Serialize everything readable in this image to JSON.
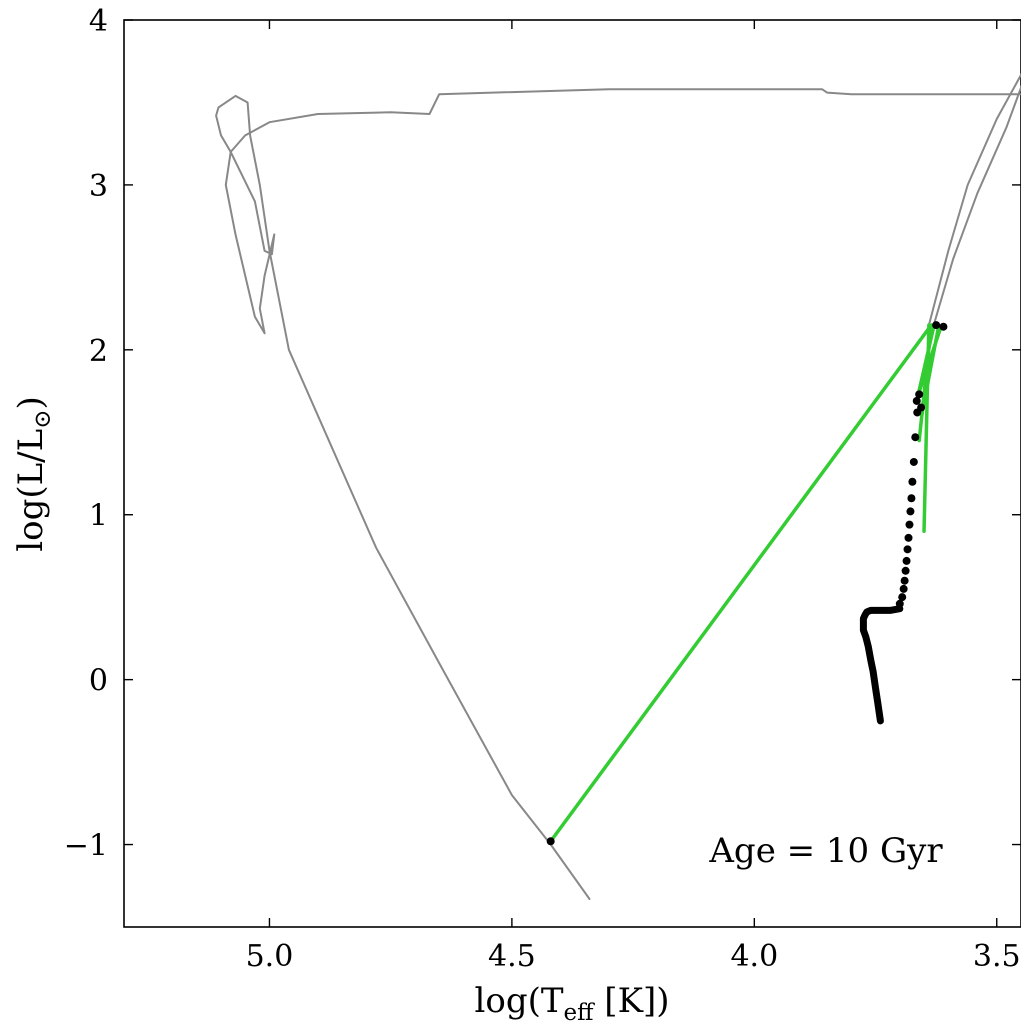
{
  "chart_data": {
    "type": "scatter",
    "title": "",
    "xlabel_base": "log(T",
    "xlabel_sub": "eff",
    "xlabel_tail": " [K])",
    "ylabel_base": "log(L/L",
    "ylabel_sub": "⊙",
    "ylabel_tail": ")",
    "xlim": [
      5.3,
      3.45
    ],
    "ylim": [
      -1.5,
      4.0
    ],
    "xticks": [
      5.0,
      4.5,
      4.0,
      3.5
    ],
    "xtick_labels": [
      "5.0",
      "4.5",
      "4.0",
      "3.5"
    ],
    "yticks": [
      4,
      3,
      2,
      1,
      0,
      -1
    ],
    "ytick_labels": [
      "4",
      "3",
      "2",
      "1",
      "0",
      "−1"
    ],
    "annotation": "Age = 10 Gyr",
    "colors": {
      "track": "#888888",
      "links": "#33cc33",
      "points": "#000000"
    },
    "series": [
      {
        "name": "gray evolutionary track (RGB, AGB, post-AGB, white dwarf cooling)",
        "kind": "line",
        "x": [
          3.445,
          3.44,
          3.435,
          3.43,
          3.43,
          3.5,
          3.6,
          3.8,
          3.85,
          3.86,
          4.0,
          4.3,
          4.65,
          4.67,
          4.75,
          4.9,
          5.0,
          5.05,
          5.08,
          5.09,
          5.07,
          5.03,
          5.01,
          5.02,
          5.01,
          4.99,
          4.995,
          5.01,
          5.03,
          5.08,
          5.1,
          5.11,
          5.105,
          5.07,
          5.045,
          5.04,
          5.02,
          5.0,
          4.96,
          4.87,
          4.78,
          4.65,
          4.5,
          4.42,
          4.34
        ],
        "y": [
          3.75,
          3.7,
          3.62,
          3.58,
          3.55,
          3.55,
          3.55,
          3.55,
          3.56,
          3.58,
          3.58,
          3.58,
          3.55,
          3.43,
          3.44,
          3.43,
          3.38,
          3.3,
          3.2,
          3.0,
          2.7,
          2.2,
          2.1,
          2.25,
          2.45,
          2.7,
          2.58,
          2.6,
          2.9,
          3.2,
          3.3,
          3.42,
          3.47,
          3.54,
          3.5,
          3.3,
          3.0,
          2.6,
          2.0,
          1.4,
          0.8,
          0.1,
          -0.7,
          -1.0,
          -1.33
        ]
      },
      {
        "name": "gray AGB tip strands",
        "kind": "line",
        "x": [
          3.44,
          3.5,
          3.56,
          3.6,
          3.64,
          3.43,
          3.48,
          3.54,
          3.59,
          3.63
        ],
        "y": [
          3.72,
          3.4,
          3.0,
          2.6,
          2.15,
          3.75,
          3.35,
          2.95,
          2.55,
          2.15
        ]
      },
      {
        "name": "green connecting lines",
        "kind": "segments",
        "x": [
          4.42,
          3.635,
          3.665,
          3.615,
          3.635,
          3.66,
          3.62,
          3.655,
          3.64,
          3.65,
          3.63,
          3.665
        ],
        "y": [
          -0.98,
          2.15,
          1.7,
          2.14,
          2.15,
          1.45,
          2.14,
          1.6,
          2.15,
          0.9,
          2.14,
          1.69
        ]
      },
      {
        "name": "main-sequence / subgiant curve",
        "kind": "thick-line",
        "x": [
          3.74,
          3.745,
          3.75,
          3.755,
          3.76,
          3.765,
          3.77,
          3.775,
          3.775,
          3.775,
          3.772,
          3.768,
          3.76,
          3.74,
          3.72,
          3.7
        ],
        "y": [
          -0.25,
          -0.15,
          -0.05,
          0.05,
          0.12,
          0.2,
          0.26,
          0.3,
          0.34,
          0.37,
          0.39,
          0.41,
          0.42,
          0.42,
          0.42,
          0.43
        ]
      },
      {
        "name": "black points",
        "kind": "scatter",
        "x": [
          3.7,
          3.695,
          3.692,
          3.69,
          3.688,
          3.686,
          3.684,
          3.682,
          3.68,
          3.678,
          3.676,
          3.674,
          3.671,
          3.668,
          3.664,
          3.66,
          3.656,
          3.665,
          3.625,
          3.61,
          4.42
        ],
        "y": [
          0.46,
          0.5,
          0.55,
          0.6,
          0.66,
          0.72,
          0.79,
          0.86,
          0.94,
          1.02,
          1.1,
          1.2,
          1.32,
          1.47,
          1.62,
          1.73,
          1.65,
          1.69,
          2.15,
          2.14,
          -0.98
        ]
      }
    ]
  }
}
